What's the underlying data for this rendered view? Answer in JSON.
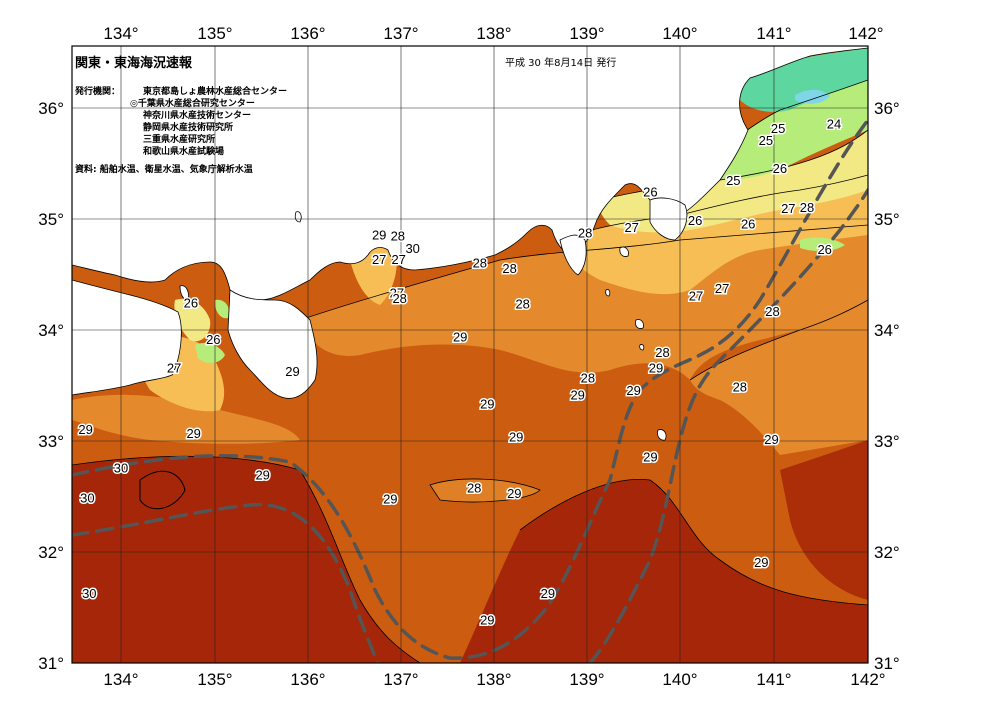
{
  "header": {
    "title": "関東・東海海況速報",
    "issue_date": "平成 30 年8月14日 発行",
    "issuers_label": "発行機関：",
    "issuers": [
      "東京都島しょ農林水産総合センター",
      "◎千葉県水産総合研究センター",
      "神奈川県水産技術センター",
      "静岡県水産技術研究所",
      "三重県水産研究所",
      "和歌山県水産試験場"
    ],
    "source": "資料: 船舶水温、衛星水温、気象庁解析水温"
  },
  "axes": {
    "lon_ticks": [
      "134°",
      "135°",
      "136°",
      "137°",
      "138°",
      "139°",
      "140°",
      "141°",
      "142°"
    ],
    "lat_ticks": [
      "31°",
      "32°",
      "33°",
      "34°",
      "35°",
      "36°"
    ],
    "lon_range": [
      133.5,
      142
    ],
    "lat_range": [
      31,
      36.5
    ]
  },
  "colors": {
    "t24": "#5ed6a0",
    "t25": "#b6ec7a",
    "t26": "#f2e884",
    "t27": "#f6be54",
    "t28": "#e48a2c",
    "t29": "#cc5c10",
    "t30": "#a52608",
    "land": "#ffffff",
    "kuroshio_axis": "#555555"
  },
  "contour_labels": [
    {
      "text": "24",
      "lon": 141.65,
      "lat": 35.86
    },
    {
      "text": "25",
      "lon": 141.05,
      "lat": 35.82
    },
    {
      "text": "25",
      "lon": 140.92,
      "lat": 35.71
    },
    {
      "text": "25",
      "lon": 140.57,
      "lat": 35.35
    },
    {
      "text": "26",
      "lon": 139.68,
      "lat": 35.25
    },
    {
      "text": "26",
      "lon": 141.07,
      "lat": 35.46
    },
    {
      "text": "26",
      "lon": 140.16,
      "lat": 34.99
    },
    {
      "text": "26",
      "lon": 140.73,
      "lat": 34.96
    },
    {
      "text": "26",
      "lon": 141.55,
      "lat": 34.73
    },
    {
      "text": "27",
      "lon": 139.48,
      "lat": 34.93
    },
    {
      "text": "27",
      "lon": 141.16,
      "lat": 35.1
    },
    {
      "text": "28",
      "lon": 141.36,
      "lat": 35.11
    },
    {
      "text": "27",
      "lon": 140.17,
      "lat": 34.31
    },
    {
      "text": "27",
      "lon": 140.45,
      "lat": 34.38
    },
    {
      "text": "28",
      "lon": 138.98,
      "lat": 34.88
    },
    {
      "text": "28",
      "lon": 137.85,
      "lat": 34.61
    },
    {
      "text": "28",
      "lon": 138.17,
      "lat": 34.56
    },
    {
      "text": "28",
      "lon": 138.31,
      "lat": 34.24
    },
    {
      "text": "28",
      "lon": 140.99,
      "lat": 34.17
    },
    {
      "text": "28",
      "lon": 139.81,
      "lat": 33.8
    },
    {
      "text": "28",
      "lon": 139.01,
      "lat": 33.57
    },
    {
      "text": "28",
      "lon": 140.64,
      "lat": 33.49
    },
    {
      "text": "28",
      "lon": 137.79,
      "lat": 32.58
    },
    {
      "text": "29",
      "lon": 136.77,
      "lat": 34.86
    },
    {
      "text": "28",
      "lon": 136.97,
      "lat": 34.85
    },
    {
      "text": "30",
      "lon": 137.13,
      "lat": 34.74
    },
    {
      "text": "27",
      "lon": 136.77,
      "lat": 34.64
    },
    {
      "text": "27",
      "lon": 136.98,
      "lat": 34.64
    },
    {
      "text": "27",
      "lon": 136.96,
      "lat": 34.34
    },
    {
      "text": "28",
      "lon": 136.99,
      "lat": 34.29
    },
    {
      "text": "29",
      "lon": 139.74,
      "lat": 33.66
    },
    {
      "text": "29",
      "lon": 139.5,
      "lat": 33.46
    },
    {
      "text": "29",
      "lon": 138.9,
      "lat": 33.42
    },
    {
      "text": "29",
      "lon": 137.93,
      "lat": 33.34
    },
    {
      "text": "29",
      "lon": 138.24,
      "lat": 33.04
    },
    {
      "text": "29",
      "lon": 139.68,
      "lat": 32.86
    },
    {
      "text": "29",
      "lon": 140.98,
      "lat": 33.02
    },
    {
      "text": "29",
      "lon": 137.64,
      "lat": 33.94
    },
    {
      "text": "29",
      "lon": 135.84,
      "lat": 33.63
    },
    {
      "text": "29",
      "lon": 133.62,
      "lat": 33.11
    },
    {
      "text": "29",
      "lon": 134.78,
      "lat": 33.07
    },
    {
      "text": "29",
      "lon": 135.52,
      "lat": 32.7
    },
    {
      "text": "29",
      "lon": 136.89,
      "lat": 32.48
    },
    {
      "text": "29",
      "lon": 138.22,
      "lat": 32.53
    },
    {
      "text": "29",
      "lon": 138.58,
      "lat": 31.63
    },
    {
      "text": "29",
      "lon": 137.93,
      "lat": 31.39
    },
    {
      "text": "29",
      "lon": 140.87,
      "lat": 31.91
    },
    {
      "text": "26",
      "lon": 134.75,
      "lat": 34.25
    },
    {
      "text": "26",
      "lon": 134.99,
      "lat": 33.92
    },
    {
      "text": "27",
      "lon": 134.57,
      "lat": 33.66
    },
    {
      "text": "30",
      "lon": 134.0,
      "lat": 32.76
    },
    {
      "text": "30",
      "lon": 133.64,
      "lat": 32.49
    },
    {
      "text": "30",
      "lon": 133.66,
      "lat": 31.63
    }
  ]
}
